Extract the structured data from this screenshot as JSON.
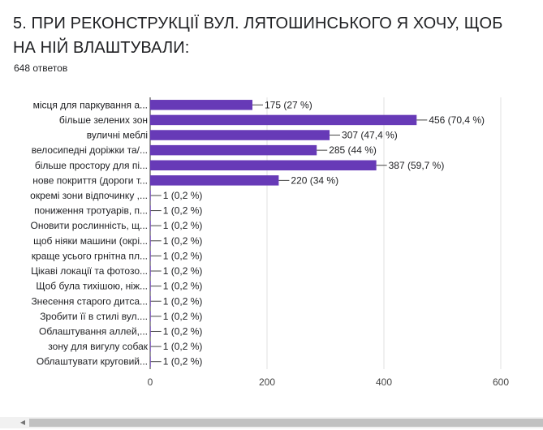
{
  "question": {
    "title": "5. ПРИ РЕКОНСТРУКЦІЇ ВУЛ. ЛЯТОШИНСЬКОГО Я ХОЧУ, ЩОБ НА НІЙ ВЛАШТУВАЛИ:",
    "responses": "648 ответов"
  },
  "colors": {
    "bar": "#673ab7",
    "grid": "#e0e0e0",
    "axis": "#333333",
    "text": "#202124"
  },
  "chart_data": {
    "type": "bar",
    "orientation": "horizontal",
    "title": "",
    "xlabel": "",
    "ylabel": "",
    "xlim": [
      0,
      600
    ],
    "ticks": [
      0,
      200,
      400,
      600
    ],
    "grid": true,
    "categories": [
      "місця для паркування а...",
      "більше зелених зон",
      "вуличні меблі",
      "велосипедні доріжки та/...",
      "більше простору для пі...",
      "нове покриття (дороги т...",
      "окремі зони відпочинку ,...",
      "пониження тротуарів, п...",
      "Оновити рослинність, щ...",
      "щоб ніяки машини (окрі...",
      "краще усього грнітна пл...",
      "Цікаві локації та фотозо...",
      "Щоб була тихішою, ніж...",
      "Знесення старого дитса...",
      "Зробити її в стилі вул....",
      "Облаштування аллей,...",
      "зону для вигулу собак",
      "Облаштувати круговий..."
    ],
    "values": [
      175,
      456,
      307,
      285,
      387,
      220,
      1,
      1,
      1,
      1,
      1,
      1,
      1,
      1,
      1,
      1,
      1,
      1
    ],
    "data_labels": [
      "175 (27 %)",
      "456 (70,4 %)",
      "307 (47,4 %)",
      "285 (44 %)",
      "387 (59,7 %)",
      "220 (34 %)",
      "1 (0,2 %)",
      "1 (0,2 %)",
      "1 (0,2 %)",
      "1 (0,2 %)",
      "1 (0,2 %)",
      "1 (0,2 %)",
      "1 (0,2 %)",
      "1 (0,2 %)",
      "1 (0,2 %)",
      "1 (0,2 %)",
      "1 (0,2 %)",
      "1 (0,2 %)"
    ]
  }
}
